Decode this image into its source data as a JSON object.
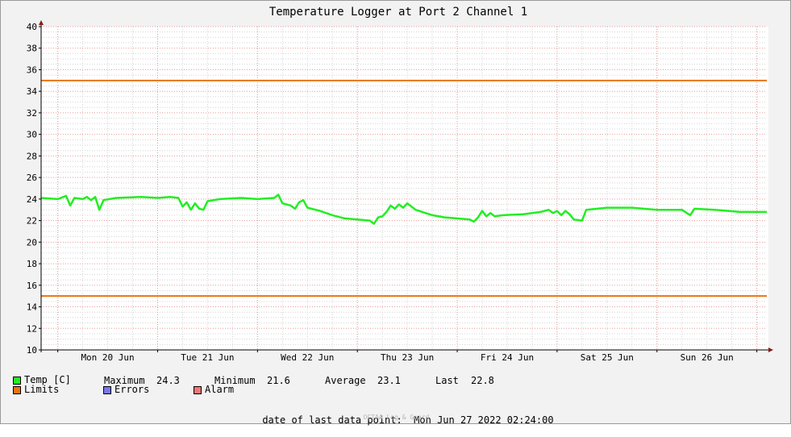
{
  "chart_data": {
    "type": "line",
    "title": "Temperature Logger at Port 2 Channel 1",
    "ylim": [
      10,
      40
    ],
    "y_ticks": [
      10,
      12,
      14,
      16,
      18,
      20,
      22,
      24,
      26,
      28,
      30,
      32,
      34,
      36,
      38,
      40
    ],
    "x_range": [
      "2022-06-19T20:00",
      "2022-06-27T02:24"
    ],
    "x_tick_labels": [
      {
        "label": "Mon 20 Jun",
        "t": "2022-06-20T12:00"
      },
      {
        "label": "Tue 21 Jun",
        "t": "2022-06-21T12:00"
      },
      {
        "label": "Wed 22 Jun",
        "t": "2022-06-22T12:00"
      },
      {
        "label": "Thu 23 Jun",
        "t": "2022-06-23T12:00"
      },
      {
        "label": "Fri 24 Jun",
        "t": "2022-06-24T12:00"
      },
      {
        "label": "Sat 25 Jun",
        "t": "2022-06-25T12:00"
      },
      {
        "label": "Sun 26 Jun",
        "t": "2022-06-26T12:00"
      }
    ],
    "grid": true,
    "colors": {
      "temp": "#22ee22",
      "limits": "#e87511",
      "errors": "#7777ee",
      "alarm": "#ee7777",
      "major_grid": "#e89a9a",
      "minor_grid": "#d4d4d4",
      "axis_arrow": "#8b1a1a"
    },
    "limits": [
      35,
      15
    ],
    "series": [
      {
        "name": "Temp [C]",
        "points": [
          [
            "2022-06-19T20:00",
            24.1
          ],
          [
            "2022-06-20T00:00",
            24.0
          ],
          [
            "2022-06-20T02:00",
            24.3
          ],
          [
            "2022-06-20T03:00",
            23.4
          ],
          [
            "2022-06-20T04:00",
            24.1
          ],
          [
            "2022-06-20T06:00",
            24.0
          ],
          [
            "2022-06-20T07:00",
            24.2
          ],
          [
            "2022-06-20T08:00",
            23.9
          ],
          [
            "2022-06-20T09:00",
            24.2
          ],
          [
            "2022-06-20T10:00",
            23.0
          ],
          [
            "2022-06-20T11:00",
            23.9
          ],
          [
            "2022-06-20T14:00",
            24.1
          ],
          [
            "2022-06-20T20:00",
            24.2
          ],
          [
            "2022-06-21T00:00",
            24.1
          ],
          [
            "2022-06-21T03:00",
            24.2
          ],
          [
            "2022-06-21T05:00",
            24.1
          ],
          [
            "2022-06-21T06:00",
            23.3
          ],
          [
            "2022-06-21T07:00",
            23.7
          ],
          [
            "2022-06-21T08:00",
            23.0
          ],
          [
            "2022-06-21T09:00",
            23.6
          ],
          [
            "2022-06-21T10:00",
            23.1
          ],
          [
            "2022-06-21T11:00",
            23.0
          ],
          [
            "2022-06-21T12:00",
            23.8
          ],
          [
            "2022-06-21T15:00",
            24.0
          ],
          [
            "2022-06-21T20:00",
            24.1
          ],
          [
            "2022-06-22T00:00",
            24.0
          ],
          [
            "2022-06-22T04:00",
            24.1
          ],
          [
            "2022-06-22T05:00",
            24.4
          ],
          [
            "2022-06-22T06:00",
            23.6
          ],
          [
            "2022-06-22T08:00",
            23.4
          ],
          [
            "2022-06-22T09:00",
            23.1
          ],
          [
            "2022-06-22T10:00",
            23.7
          ],
          [
            "2022-06-22T11:00",
            23.9
          ],
          [
            "2022-06-22T12:00",
            23.2
          ],
          [
            "2022-06-22T15:00",
            22.9
          ],
          [
            "2022-06-22T18:00",
            22.5
          ],
          [
            "2022-06-22T21:00",
            22.2
          ],
          [
            "2022-06-23T00:00",
            22.1
          ],
          [
            "2022-06-23T03:00",
            22.0
          ],
          [
            "2022-06-23T04:00",
            21.7
          ],
          [
            "2022-06-23T05:00",
            22.3
          ],
          [
            "2022-06-23T06:00",
            22.4
          ],
          [
            "2022-06-23T07:00",
            22.8
          ],
          [
            "2022-06-23T08:00",
            23.4
          ],
          [
            "2022-06-23T09:00",
            23.1
          ],
          [
            "2022-06-23T10:00",
            23.5
          ],
          [
            "2022-06-23T11:00",
            23.2
          ],
          [
            "2022-06-23T12:00",
            23.6
          ],
          [
            "2022-06-23T14:00",
            23.0
          ],
          [
            "2022-06-23T18:00",
            22.5
          ],
          [
            "2022-06-23T21:00",
            22.3
          ],
          [
            "2022-06-24T00:00",
            22.2
          ],
          [
            "2022-06-24T03:00",
            22.1
          ],
          [
            "2022-06-24T04:00",
            21.9
          ],
          [
            "2022-06-24T05:00",
            22.3
          ],
          [
            "2022-06-24T06:00",
            22.9
          ],
          [
            "2022-06-24T07:00",
            22.4
          ],
          [
            "2022-06-24T08:00",
            22.7
          ],
          [
            "2022-06-24T09:00",
            22.4
          ],
          [
            "2022-06-24T11:00",
            22.5
          ],
          [
            "2022-06-24T16:00",
            22.6
          ],
          [
            "2022-06-24T20:00",
            22.8
          ],
          [
            "2022-06-24T22:00",
            23.0
          ],
          [
            "2022-06-24T23:00",
            22.7
          ],
          [
            "2022-06-25T00:00",
            22.9
          ],
          [
            "2022-06-25T01:00",
            22.5
          ],
          [
            "2022-06-25T02:00",
            22.9
          ],
          [
            "2022-06-25T03:00",
            22.6
          ],
          [
            "2022-06-25T04:00",
            22.1
          ],
          [
            "2022-06-25T06:00",
            22.0
          ],
          [
            "2022-06-25T07:00",
            23.0
          ],
          [
            "2022-06-25T12:00",
            23.2
          ],
          [
            "2022-06-25T18:00",
            23.2
          ],
          [
            "2022-06-26T00:00",
            23.0
          ],
          [
            "2022-06-26T06:00",
            23.0
          ],
          [
            "2022-06-26T08:00",
            22.5
          ],
          [
            "2022-06-26T09:00",
            23.1
          ],
          [
            "2022-06-26T14:00",
            23.0
          ],
          [
            "2022-06-26T20:00",
            22.8
          ],
          [
            "2022-06-27T02:24",
            22.8
          ]
        ]
      }
    ]
  },
  "legend": {
    "temp_label": "Temp [C]",
    "limits_label": "Limits",
    "errors_label": "Errors",
    "alarm_label": "Alarm"
  },
  "stats": {
    "maximum_label": "Maximum",
    "maximum_value": "24.3",
    "minimum_label": "Minimum",
    "minimum_value": "21.6",
    "average_label": "Average",
    "average_value": "23.1",
    "last_label": "Last",
    "last_value": "22.8"
  },
  "footer": {
    "last_point_label": "date of last data point:",
    "last_point_value": "Mon Jun 27 2022 02:24:00",
    "watermark": "OCTAA Log & Guard"
  }
}
